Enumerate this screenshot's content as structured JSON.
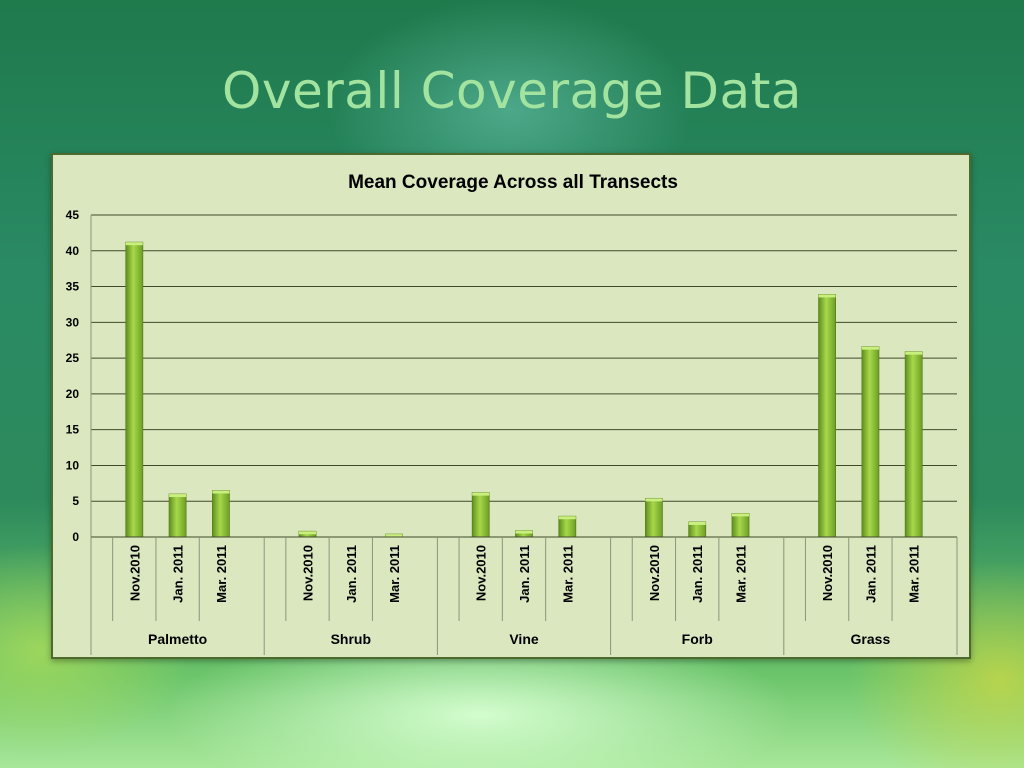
{
  "slide": {
    "title": "Overall Coverage Data"
  },
  "chart_data": {
    "type": "bar",
    "title": "Mean Coverage Across all Transects",
    "xlabel": "",
    "ylabel": "",
    "ylim": [
      0,
      45
    ],
    "yticks": [
      0,
      5,
      10,
      15,
      20,
      25,
      30,
      35,
      40,
      45
    ],
    "grid": true,
    "legend": "none",
    "groups": [
      "Palmetto",
      "Shrub",
      "Vine",
      "Forb",
      "Grass"
    ],
    "categories": [
      "Nov.2010",
      "Jan. 2011",
      "Mar. 2011"
    ],
    "values": [
      [
        41.2,
        6.0,
        6.5
      ],
      [
        0.8,
        0,
        0.4
      ],
      [
        6.2,
        0.9,
        2.9
      ],
      [
        5.4,
        2.1,
        3.3
      ],
      [
        33.9,
        26.6,
        25.9
      ]
    ],
    "bar_color": "#8fc43a"
  }
}
